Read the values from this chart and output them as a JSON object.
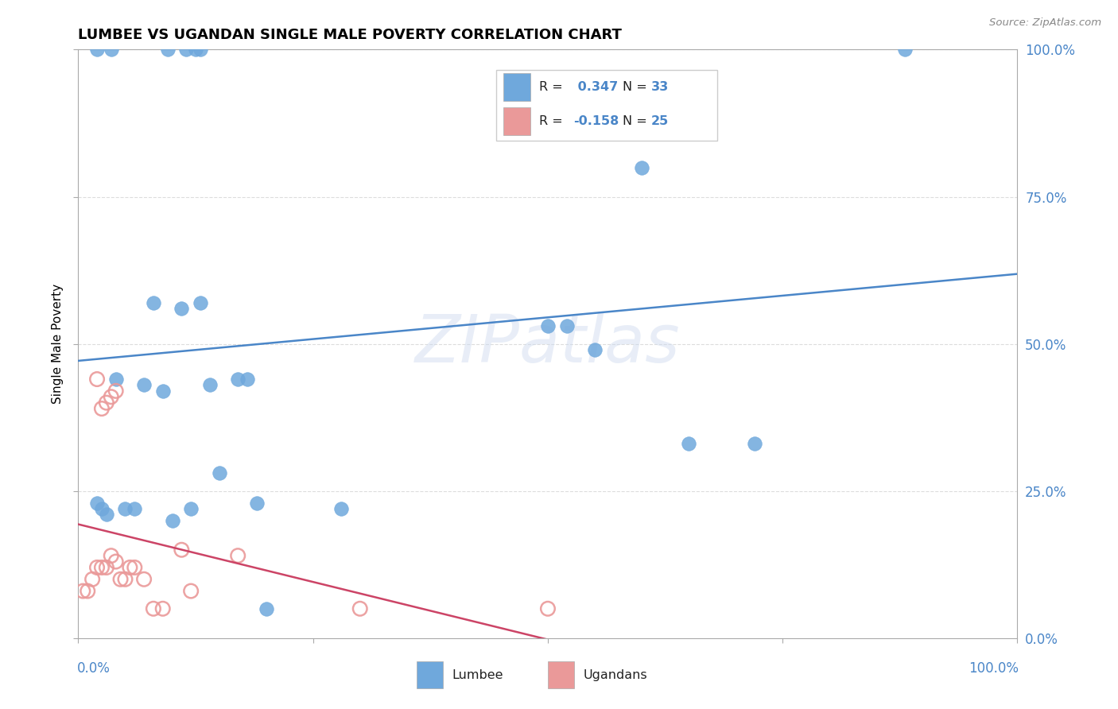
{
  "title": "LUMBEE VS UGANDAN SINGLE MALE POVERTY CORRELATION CHART",
  "source": "Source: ZipAtlas.com",
  "ylabel": "Single Male Poverty",
  "ytick_values": [
    0,
    0.25,
    0.5,
    0.75,
    1.0
  ],
  "xlim": [
    0,
    1.0
  ],
  "ylim": [
    0,
    1.0
  ],
  "lumbee_x": [
    0.02,
    0.035,
    0.095,
    0.115,
    0.125,
    0.13,
    0.04,
    0.08,
    0.11,
    0.13,
    0.07,
    0.09,
    0.14,
    0.17,
    0.18,
    0.28,
    0.5,
    0.52,
    0.55,
    0.6,
    0.65,
    0.72,
    0.88,
    0.02,
    0.025,
    0.03,
    0.05,
    0.06,
    0.1,
    0.12,
    0.15,
    0.19,
    0.2
  ],
  "lumbee_y": [
    1.0,
    1.0,
    1.0,
    1.0,
    1.0,
    1.0,
    0.44,
    0.57,
    0.56,
    0.57,
    0.43,
    0.42,
    0.43,
    0.44,
    0.44,
    0.22,
    0.53,
    0.53,
    0.49,
    0.8,
    0.33,
    0.33,
    1.0,
    0.23,
    0.22,
    0.21,
    0.22,
    0.22,
    0.2,
    0.22,
    0.28,
    0.23,
    0.05
  ],
  "ugandan_x": [
    0.02,
    0.025,
    0.03,
    0.035,
    0.04,
    0.005,
    0.01,
    0.015,
    0.02,
    0.025,
    0.03,
    0.035,
    0.04,
    0.045,
    0.05,
    0.055,
    0.06,
    0.07,
    0.08,
    0.09,
    0.11,
    0.12,
    0.17,
    0.3,
    0.5
  ],
  "ugandan_y": [
    0.44,
    0.39,
    0.4,
    0.41,
    0.42,
    0.08,
    0.08,
    0.1,
    0.12,
    0.12,
    0.12,
    0.14,
    0.13,
    0.1,
    0.1,
    0.12,
    0.12,
    0.1,
    0.05,
    0.05,
    0.15,
    0.08,
    0.14,
    0.05,
    0.05
  ],
  "lumbee_color": "#6fa8dc",
  "ugandan_color": "#ea9999",
  "lumbee_line_color": "#4a86c8",
  "ugandan_line_color": "#cc4466",
  "lumbee_R": 0.347,
  "lumbee_N": 33,
  "ugandan_R": -0.158,
  "ugandan_N": 25,
  "watermark_text": "ZIPatlas",
  "background_color": "#ffffff",
  "grid_color": "#dddddd",
  "axis_label_color": "#4a86c8",
  "title_color": "#000000",
  "source_color": "#888888"
}
